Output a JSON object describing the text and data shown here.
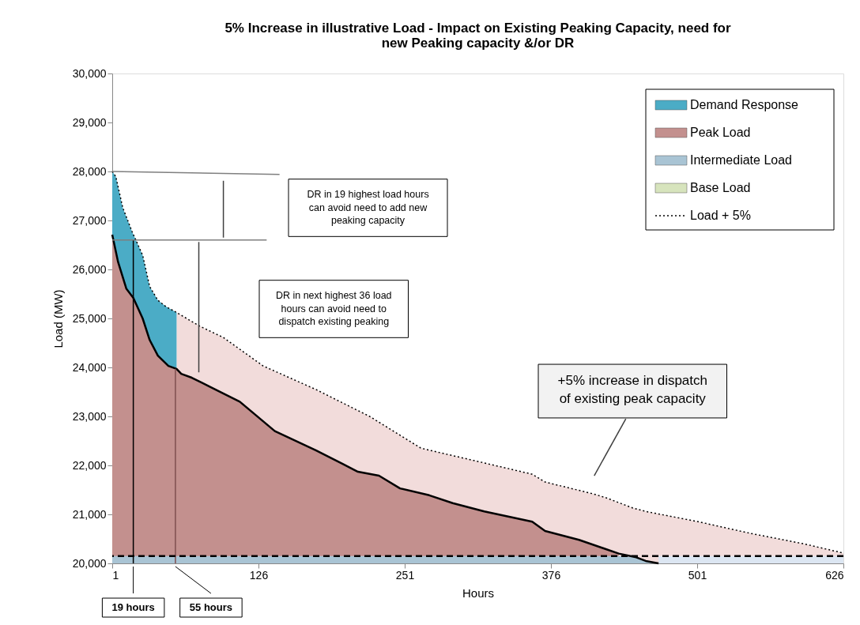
{
  "chart_data": {
    "type": "area",
    "title": "5% Increase in illustrative Load - Impact on Existing Peaking Capacity, need for\nnew Peaking capacity &/or DR",
    "xlabel": "Hours",
    "ylabel": "Load (MW)",
    "xlim": [
      1,
      626
    ],
    "xticks": [
      1,
      126,
      251,
      376,
      501,
      626
    ],
    "ylim": [
      20000,
      30000
    ],
    "yticks": [
      {
        "value": 20000,
        "label": "20,000"
      },
      {
        "value": 21000,
        "label": "21,000"
      },
      {
        "value": 22000,
        "label": "22,000"
      },
      {
        "value": 23000,
        "label": "23,000"
      },
      {
        "value": 24000,
        "label": "24,000"
      },
      {
        "value": 25000,
        "label": "25,000"
      },
      {
        "value": 26000,
        "label": "26,000"
      },
      {
        "value": 27000,
        "label": "27,000"
      },
      {
        "value": 28000,
        "label": "28,000"
      },
      {
        "value": 29000,
        "label": "29,000"
      },
      {
        "value": 30000,
        "label": "30,000"
      }
    ],
    "grid": false,
    "legend": "top right",
    "series": [
      {
        "color": "#f2dcdb",
        "x": [
          56,
          76,
          96,
          130,
          175,
          221,
          265,
          310,
          360,
          371,
          412,
          423,
          446,
          457,
          502,
          547,
          592,
          626
        ],
        "values": [
          25120,
          24840,
          24610,
          24030,
          23550,
          23000,
          22350,
          22100,
          21820,
          21660,
          21420,
          21340,
          21130,
          21060,
          20850,
          20610,
          20400,
          20210
        ]
      },
      {
        "name": "Demand Response",
        "color": "#4bacc6",
        "x": [
          1,
          4,
          10,
          18,
          27,
          33,
          40,
          47,
          56
        ],
        "values": [
          28000,
          27900,
          27260,
          26770,
          26290,
          25650,
          25370,
          25240,
          25120
        ]
      },
      {
        "name": "Peak Load",
        "color": "#c3908e",
        "x": [
          1,
          6,
          13,
          19,
          27,
          33,
          40,
          49,
          56,
          60,
          69,
          85,
          110,
          140,
          175,
          198,
          211,
          229,
          247,
          272,
          292,
          319,
          360,
          371,
          400,
          423,
          434
        ],
        "values": [
          26710,
          26150,
          25610,
          25420,
          25000,
          24560,
          24240,
          24030,
          23970,
          23870,
          23790,
          23600,
          23300,
          22700,
          22310,
          22030,
          21870,
          21790,
          21530,
          21390,
          21230,
          21060,
          20850,
          20660,
          20480,
          20290,
          20200
        ]
      },
      {
        "color": "#dce6f2",
        "x": [
          468,
          626
        ],
        "values": [
          20150,
          20150
        ]
      },
      {
        "name": "Intermediate Load",
        "color": "#a9c4d4",
        "x": [
          1,
          434,
          448,
          457,
          468
        ],
        "values": [
          20150,
          20150,
          20130,
          20050,
          20000
        ]
      },
      {
        "name": "Base Load",
        "color": "#d7e4bd"
      },
      {
        "name": "Load + 5%",
        "type": "line",
        "line_style": "dotted",
        "color": "#000000",
        "x": [
          1,
          4,
          10,
          18,
          27,
          33,
          40,
          47,
          56,
          76,
          96,
          130,
          175,
          221,
          265,
          310,
          360,
          371,
          412,
          423,
          446,
          457,
          502,
          547,
          592,
          626
        ],
        "values": [
          28000,
          27900,
          27260,
          26770,
          26290,
          25650,
          25370,
          25240,
          25120,
          24840,
          24610,
          24030,
          23550,
          23000,
          22350,
          22100,
          21820,
          21660,
          21420,
          21340,
          21130,
          21060,
          20850,
          20610,
          20400,
          20210
        ]
      },
      {
        "type": "line",
        "line_style": "solid",
        "color": "#000000",
        "x": [
          1,
          6,
          13,
          19,
          27,
          33,
          40,
          49,
          56,
          60,
          69,
          85,
          110,
          140,
          175,
          198,
          211,
          229,
          247,
          272,
          292,
          319,
          360,
          371,
          400,
          423,
          434,
          448,
          457,
          468
        ],
        "values": [
          26710,
          26150,
          25610,
          25420,
          25000,
          24560,
          24240,
          24030,
          23970,
          23870,
          23790,
          23600,
          23300,
          22700,
          22310,
          22030,
          21870,
          21790,
          21530,
          21390,
          21230,
          21060,
          20850,
          20660,
          20480,
          20290,
          20200,
          20130,
          20050,
          20000
        ]
      },
      {
        "type": "line",
        "line_style": "solid",
        "color": "#000000",
        "x": [
          19,
          19
        ],
        "values": [
          20000,
          26600
        ]
      },
      {
        "type": "line",
        "line_style": "solid",
        "color": "#7f4f4f",
        "x": [
          55,
          55
        ],
        "values": [
          20000,
          23970
        ]
      },
      {
        "type": "line",
        "line_style": "solid",
        "color": "#7f7f7f",
        "x": [
          1,
          144
        ],
        "values": [
          28000,
          27940
        ]
      },
      {
        "type": "line",
        "line_style": "solid",
        "color": "#7f7f7f",
        "x": [
          1,
          133
        ],
        "values": [
          26600,
          26600
        ]
      },
      {
        "type": "line",
        "line_style": "solid",
        "color": "#404040",
        "x": [
          96,
          96
        ],
        "values": [
          27810,
          26650
        ]
      },
      {
        "type": "line",
        "line_style": "solid",
        "color": "#404040",
        "x": [
          75,
          75
        ],
        "values": [
          26560,
          23900
        ]
      },
      {
        "type": "line",
        "line_style": "solid",
        "color": "#404040",
        "x": [
          413,
          440
        ],
        "values": [
          21790,
          22950
        ]
      }
    ],
    "ref_lines": [
      {
        "axis": "y",
        "value": 20150,
        "line_style": "dashed",
        "color": "#000000"
      }
    ],
    "annotations": [
      "DR in 19 highest  load hours\ncan avoid need to add new\npeaking capacity",
      "DR in next highest 36 load\nhours can avoid need to\ndispatch existing peaking",
      "+5% increase in dispatch\nof existing peak capacity",
      {
        "text": "19 hours",
        "x": 19,
        "y": 20000
      },
      {
        "text": "55 hours",
        "x": 55,
        "y": 20000
      }
    ]
  }
}
